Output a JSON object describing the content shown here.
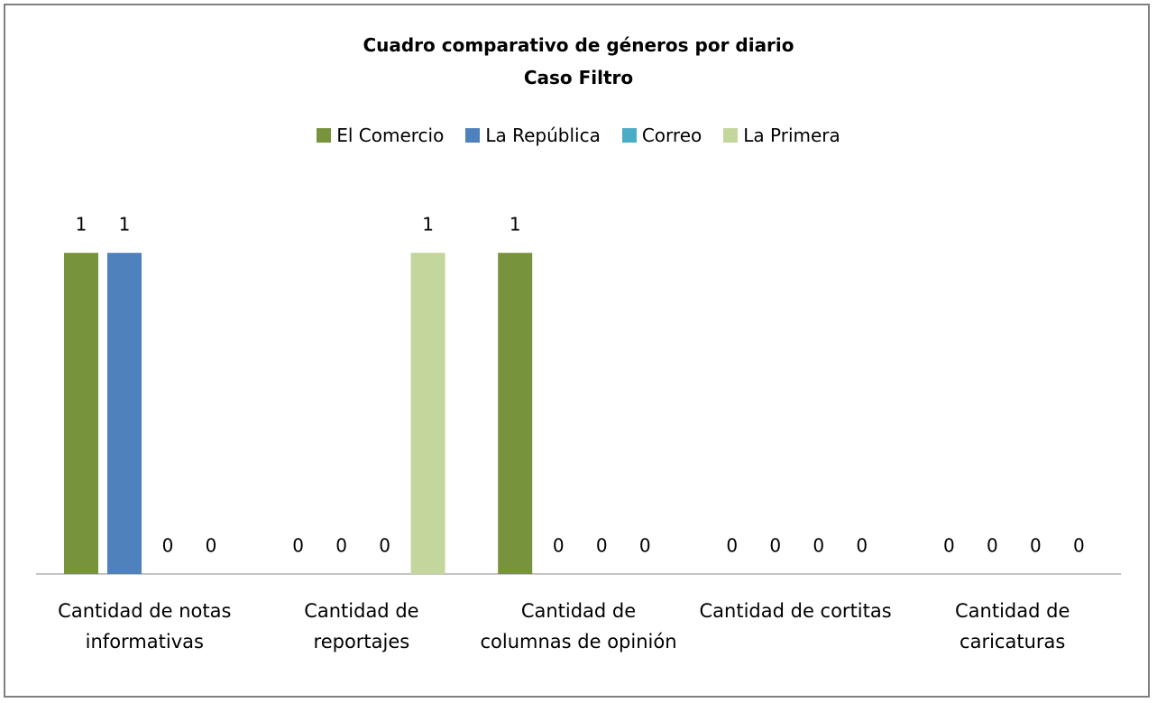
{
  "chart_data": {
    "type": "bar",
    "title": "Cuadro comparativo de géneros por diario",
    "subtitle": "Caso Filtro",
    "categories": [
      "Cantidad de notas informativas",
      "Cantidad de reportajes",
      "Cantidad de columnas de opinión",
      "Cantidad de cortitas",
      "Cantidad de caricaturas"
    ],
    "series": [
      {
        "name": "El Comercio",
        "color": "#77933c",
        "values": [
          1,
          0,
          1,
          0,
          0
        ]
      },
      {
        "name": "La República",
        "color": "#4f81bd",
        "values": [
          1,
          0,
          0,
          0,
          0
        ]
      },
      {
        "name": "Correo",
        "color": "#4bacc6",
        "values": [
          0,
          0,
          0,
          0,
          0
        ]
      },
      {
        "name": "La Primera",
        "color": "#c3d69b",
        "values": [
          0,
          1,
          0,
          0,
          0
        ]
      }
    ],
    "ylim": [
      0,
      1.2
    ],
    "legend": "top"
  }
}
